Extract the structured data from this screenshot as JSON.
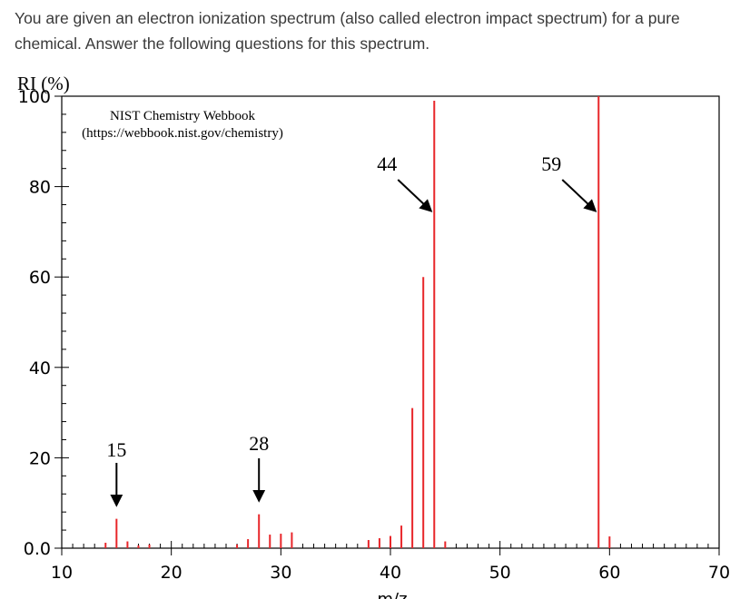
{
  "intro": {
    "text": "You are given an electron ionization spectrum (also called electron impact spectrum) for a pure chemical.  Answer the following questions for this spectrum."
  },
  "chart_data": {
    "type": "bar",
    "watermark_line1": "NIST Chemistry Webbook",
    "watermark_line2": "(https://webbook.nist.gov/chemistry)",
    "ylabel": "RI (%)",
    "xlabel": "m/z",
    "xlim": [
      10,
      70
    ],
    "ylim": [
      0,
      100
    ],
    "x_ticks": [
      "10",
      "20",
      "30",
      "40",
      "50",
      "60",
      "70"
    ],
    "y_ticks": [
      "0.0",
      "20",
      "40",
      "60",
      "80",
      "100"
    ],
    "peaks": [
      {
        "mz": 14,
        "ri": 1.2
      },
      {
        "mz": 15,
        "ri": 6.5
      },
      {
        "mz": 16,
        "ri": 1.5
      },
      {
        "mz": 17,
        "ri": 0.6
      },
      {
        "mz": 18,
        "ri": 0.8
      },
      {
        "mz": 26,
        "ri": 0.8
      },
      {
        "mz": 27,
        "ri": 2.0
      },
      {
        "mz": 28,
        "ri": 7.5
      },
      {
        "mz": 29,
        "ri": 3.0
      },
      {
        "mz": 30,
        "ri": 3.2
      },
      {
        "mz": 31,
        "ri": 3.5
      },
      {
        "mz": 38,
        "ri": 1.8
      },
      {
        "mz": 39,
        "ri": 2.2
      },
      {
        "mz": 40,
        "ri": 2.7
      },
      {
        "mz": 41,
        "ri": 5.0
      },
      {
        "mz": 42,
        "ri": 31.0
      },
      {
        "mz": 43,
        "ri": 60.0
      },
      {
        "mz": 44,
        "ri": 99.0
      },
      {
        "mz": 45,
        "ri": 1.5
      },
      {
        "mz": 59,
        "ri": 100.0
      },
      {
        "mz": 60,
        "ri": 2.6
      }
    ],
    "annotations": [
      {
        "label": "15",
        "mz": 15,
        "direction": "down"
      },
      {
        "label": "28",
        "mz": 28,
        "direction": "down"
      },
      {
        "label": "44",
        "mz": 44,
        "direction": "diagonal"
      },
      {
        "label": "59",
        "mz": 59,
        "direction": "diagonal"
      }
    ],
    "colors": {
      "peak": "#e8262a",
      "axis": "#000000"
    }
  }
}
